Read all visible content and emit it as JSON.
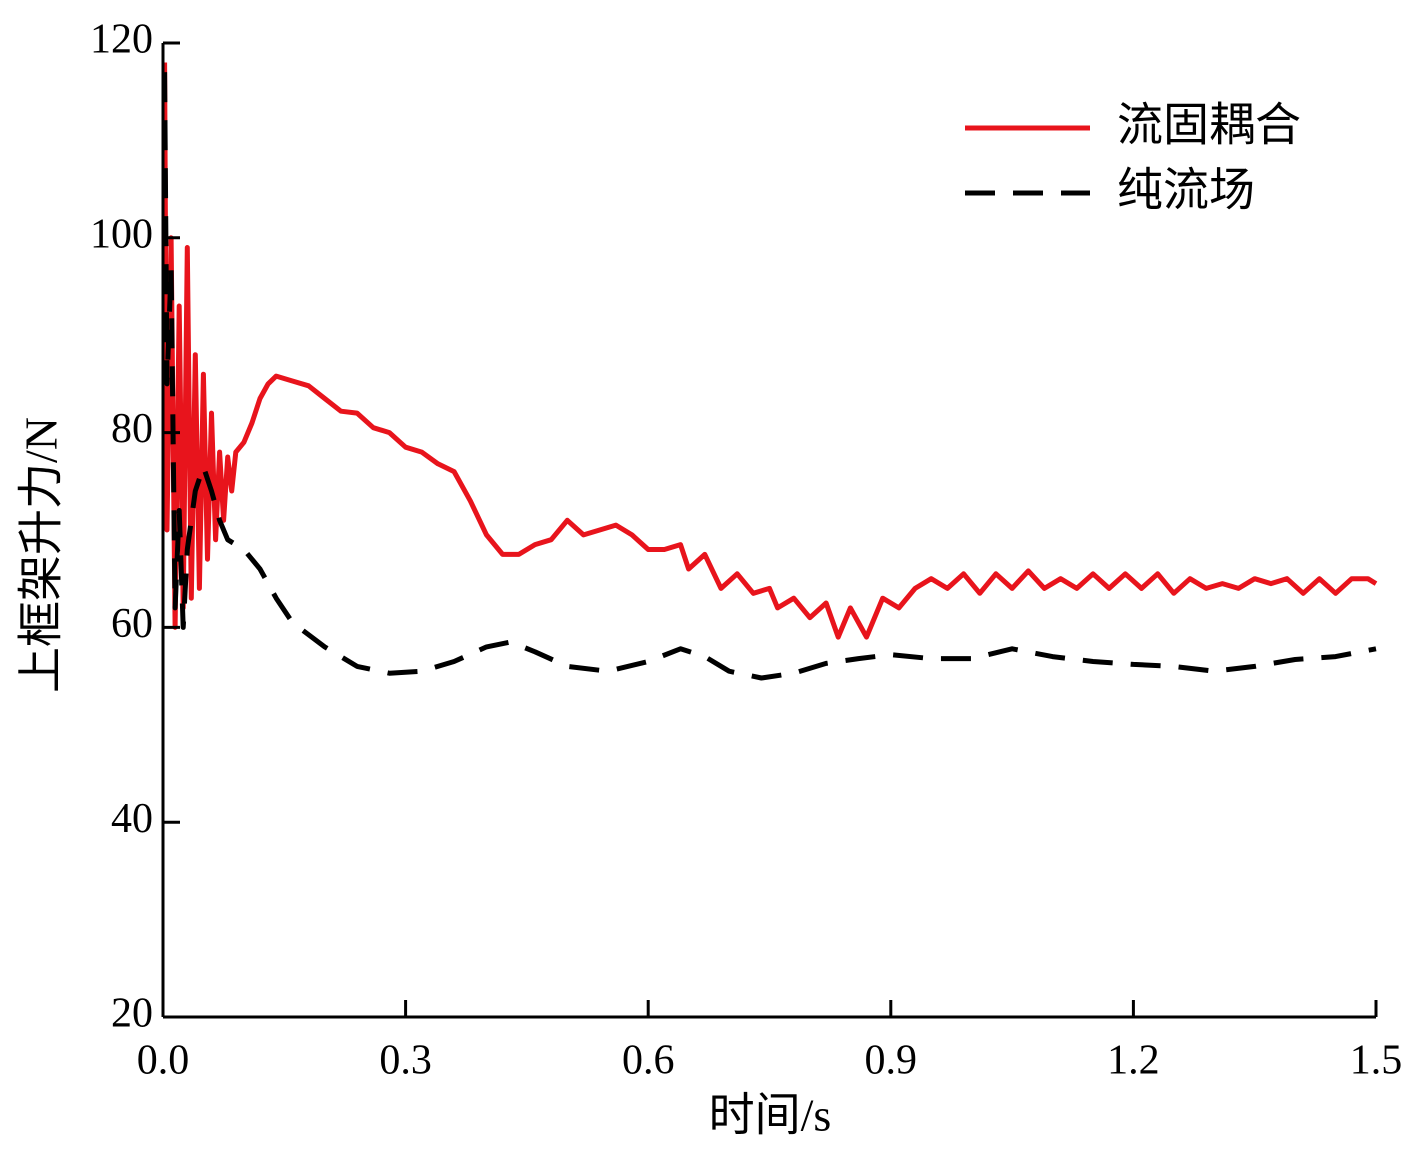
{
  "chart_data": {
    "type": "line",
    "xlabel": "时间/s",
    "ylabel": "上框架升力/N",
    "xlim": [
      0,
      1.5
    ],
    "ylim": [
      20,
      120
    ],
    "xticks": [
      {
        "value": 0,
        "label": "0.0"
      },
      0.3,
      0.6,
      0.9,
      1.2,
      1.5
    ],
    "yticks": [
      20,
      40,
      60,
      80,
      100,
      120
    ],
    "grid": false,
    "legend": "upper right",
    "series": [
      {
        "name": "流固耦合",
        "color": "#e8141c",
        "dash": false,
        "x": [
          0.002,
          0.005,
          0.01,
          0.015,
          0.02,
          0.025,
          0.03,
          0.035,
          0.04,
          0.045,
          0.05,
          0.055,
          0.06,
          0.065,
          0.07,
          0.075,
          0.08,
          0.085,
          0.09,
          0.1,
          0.11,
          0.12,
          0.13,
          0.14,
          0.16,
          0.18,
          0.2,
          0.22,
          0.24,
          0.26,
          0.28,
          0.3,
          0.32,
          0.34,
          0.36,
          0.38,
          0.4,
          0.42,
          0.44,
          0.46,
          0.48,
          0.5,
          0.52,
          0.54,
          0.56,
          0.58,
          0.6,
          0.62,
          0.64,
          0.65,
          0.67,
          0.69,
          0.71,
          0.73,
          0.75,
          0.76,
          0.78,
          0.8,
          0.82,
          0.835,
          0.85,
          0.87,
          0.89,
          0.91,
          0.93,
          0.95,
          0.97,
          0.99,
          1.01,
          1.03,
          1.05,
          1.07,
          1.09,
          1.11,
          1.13,
          1.15,
          1.17,
          1.19,
          1.21,
          1.23,
          1.25,
          1.27,
          1.29,
          1.31,
          1.33,
          1.35,
          1.37,
          1.39,
          1.41,
          1.43,
          1.45,
          1.47,
          1.49,
          1.5
        ],
        "values": [
          118,
          70,
          100,
          60,
          93,
          62,
          99,
          63,
          88,
          64,
          86,
          67,
          82,
          69,
          78,
          71,
          77.5,
          74,
          78,
          79,
          81,
          83.5,
          85,
          85.8,
          85.3,
          84.8,
          83.5,
          82.2,
          82,
          80.5,
          80,
          78.5,
          78,
          76.8,
          76,
          73,
          69.5,
          67.5,
          67.5,
          68.5,
          69,
          71,
          69.5,
          70,
          70.5,
          69.5,
          68,
          68,
          68.5,
          66,
          67.5,
          64,
          65.5,
          63.5,
          64,
          62,
          63,
          61,
          62.5,
          59,
          62,
          59,
          63,
          62,
          64,
          65,
          64,
          65.5,
          63.5,
          65.5,
          64,
          65.8,
          64,
          65,
          64,
          65.5,
          64,
          65.5,
          64,
          65.5,
          63.5,
          65,
          64,
          64.5,
          64,
          65,
          64.5,
          65,
          63.5,
          65,
          63.5,
          65,
          65,
          64.5
        ]
      },
      {
        "name": "纯流场",
        "color": "#000000",
        "dash": true,
        "x": [
          0.002,
          0.005,
          0.01,
          0.015,
          0.02,
          0.025,
          0.03,
          0.04,
          0.05,
          0.06,
          0.07,
          0.08,
          0.1,
          0.12,
          0.14,
          0.16,
          0.2,
          0.24,
          0.28,
          0.32,
          0.36,
          0.4,
          0.43,
          0.46,
          0.5,
          0.55,
          0.6,
          0.64,
          0.67,
          0.7,
          0.74,
          0.78,
          0.82,
          0.86,
          0.9,
          0.95,
          1.0,
          1.05,
          1.1,
          1.15,
          1.2,
          1.25,
          1.3,
          1.35,
          1.4,
          1.45,
          1.5
        ],
        "values": [
          117,
          85,
          97,
          62,
          72,
          60,
          68,
          74,
          76.5,
          74,
          71,
          69,
          68,
          66,
          63,
          60.5,
          58,
          56,
          55.3,
          55.5,
          56.5,
          58,
          58.5,
          57.5,
          56,
          55.5,
          56.5,
          57.8,
          57,
          55.5,
          54.8,
          55.3,
          56.3,
          56.8,
          57.2,
          56.8,
          56.8,
          57.8,
          57,
          56.5,
          56.2,
          56,
          55.5,
          56,
          56.7,
          57,
          57.8
        ]
      }
    ]
  }
}
